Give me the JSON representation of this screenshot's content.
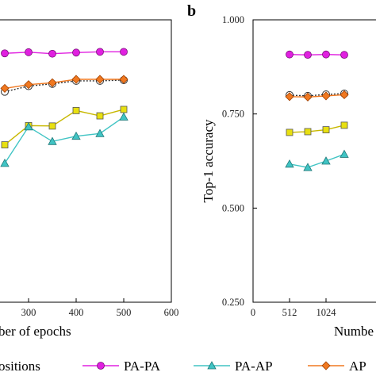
{
  "colors": {
    "PA-PA": "#e020e0",
    "PA-AP": "#40c4c4",
    "AP": "#f07820",
    "dotted_series": "#333333",
    "yellow_series": "#e8e010"
  },
  "legend": {
    "partial_label": "ositions",
    "entries": [
      "PA-PA",
      "PA-AP",
      "AP"
    ]
  },
  "chart_data": [
    {
      "type": "line",
      "panel_label": "",
      "xlabel": "ber of epochs",
      "ylabel": "",
      "x_ticks": [
        "300",
        "400",
        "500",
        "600"
      ],
      "series": [
        {
          "name": "PA-PA",
          "x": [
            250,
            300,
            350,
            400,
            450,
            500
          ],
          "values": [
            0.911,
            0.914,
            0.91,
            0.913,
            0.915,
            0.915
          ]
        },
        {
          "name": "",
          "x": [
            250,
            300,
            350,
            400,
            450,
            500
          ],
          "values": [
            0.809,
            0.824,
            0.83,
            0.838,
            0.838,
            0.84
          ]
        },
        {
          "name": "AP",
          "x": [
            250,
            300,
            350,
            400,
            450,
            500
          ],
          "values": [
            0.818,
            0.828,
            0.833,
            0.842,
            0.842,
            0.842
          ]
        },
        {
          "name": "",
          "x": [
            250,
            300,
            350,
            400,
            450,
            500
          ],
          "values": [
            0.668,
            0.719,
            0.718,
            0.759,
            0.745,
            0.762
          ]
        },
        {
          "name": "PA-AP",
          "x": [
            250,
            300,
            350,
            400,
            450,
            500
          ],
          "values": [
            0.619,
            0.716,
            0.677,
            0.691,
            0.698,
            0.742
          ]
        }
      ]
    },
    {
      "type": "line",
      "panel_label": "b",
      "xlabel": "Numbe",
      "ylabel": "Top-1 accuracy",
      "ylim": [
        0.25,
        1.0
      ],
      "y_ticks": [
        "0.250",
        "0.500",
        "0.750",
        "1.000"
      ],
      "x_ticks": [
        "0",
        "512",
        "1024"
      ],
      "series": [
        {
          "name": "PA-PA",
          "x": [
            512,
            768,
            1024,
            1280
          ],
          "values": [
            0.908,
            0.907,
            0.908,
            0.907
          ]
        },
        {
          "name": "",
          "x": [
            512,
            768,
            1024,
            1280
          ],
          "values": [
            0.8,
            0.798,
            0.802,
            0.804
          ]
        },
        {
          "name": "AP",
          "x": [
            512,
            768,
            1024,
            1280
          ],
          "values": [
            0.796,
            0.795,
            0.798,
            0.801
          ]
        },
        {
          "name": "",
          "x": [
            512,
            768,
            1024,
            1280
          ],
          "values": [
            0.701,
            0.703,
            0.708,
            0.72
          ]
        },
        {
          "name": "PA-AP",
          "x": [
            512,
            768,
            1024,
            1280
          ],
          "values": [
            0.617,
            0.608,
            0.625,
            0.643
          ]
        }
      ]
    }
  ]
}
